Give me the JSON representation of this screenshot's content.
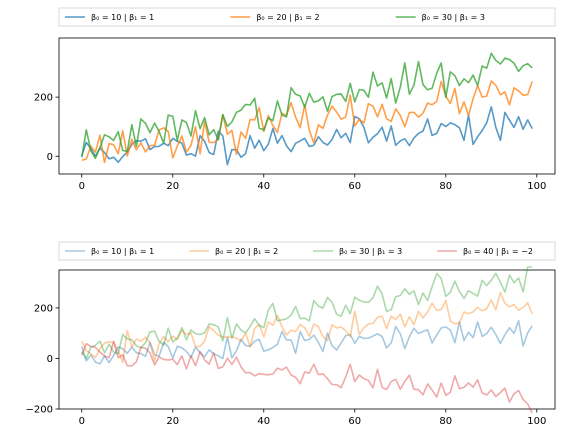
{
  "chart_data": [
    {
      "type": "line",
      "title": "",
      "xlabel": "",
      "ylabel": "",
      "xlim": [
        -5,
        104
      ],
      "ylim": [
        -60,
        400
      ],
      "xticks": [
        0,
        20,
        40,
        60,
        80,
        100
      ],
      "yticks": [
        0,
        200
      ],
      "xtick_labels": [
        "0",
        "20",
        "40",
        "60",
        "80",
        "100"
      ],
      "ytick_labels": [
        "0",
        "200"
      ],
      "grid": false,
      "legend_position": "above, spanning full width (3 columns)",
      "series": [
        {
          "name": "β₀ = 10 | β₁ = 1",
          "color": "#1f77b4",
          "beta0": 10,
          "beta1": 1,
          "noise": 28,
          "seed": 11
        },
        {
          "name": "β₀ = 20 | β₁ = 2",
          "color": "#ff7f0e",
          "beta0": 20,
          "beta1": 2,
          "noise": 30,
          "seed": 23
        },
        {
          "name": "β₀ = 30 | β₁ = 3",
          "color": "#2ca02c",
          "beta0": 30,
          "beta1": 3,
          "noise": 30,
          "seed": 37
        }
      ]
    },
    {
      "type": "line",
      "title": "",
      "xlabel": "",
      "ylabel": "",
      "xlim": [
        -5,
        104
      ],
      "ylim": [
        -200,
        350
      ],
      "xticks": [
        0,
        20,
        40,
        60,
        80,
        100
      ],
      "yticks": [
        -200,
        0,
        200
      ],
      "xtick_labels": [
        "0",
        "20",
        "40",
        "60",
        "80",
        "100"
      ],
      "ytick_labels": [
        "−200",
        "0",
        "200"
      ],
      "grid": false,
      "legend_position": "above, spanning full width (4 columns)",
      "series": [
        {
          "name": "β₀ = 10 | β₁ = 1",
          "color": "#1f77b4",
          "beta0": 10,
          "beta1": 1,
          "noise": 28,
          "seed": 51
        },
        {
          "name": "β₀ = 20 | β₁ = 2",
          "color": "#ff7f0e",
          "beta0": 20,
          "beta1": 2,
          "noise": 30,
          "seed": 63
        },
        {
          "name": "β₀ = 30 | β₁ = 3",
          "color": "#2ca02c",
          "beta0": 30,
          "beta1": 3,
          "noise": 30,
          "seed": 77
        },
        {
          "name": "β₀ = 40 | β₁ = −2",
          "color": "#d62728",
          "beta0": 40,
          "beta1": -2,
          "noise": 28,
          "seed": 89
        }
      ]
    }
  ]
}
